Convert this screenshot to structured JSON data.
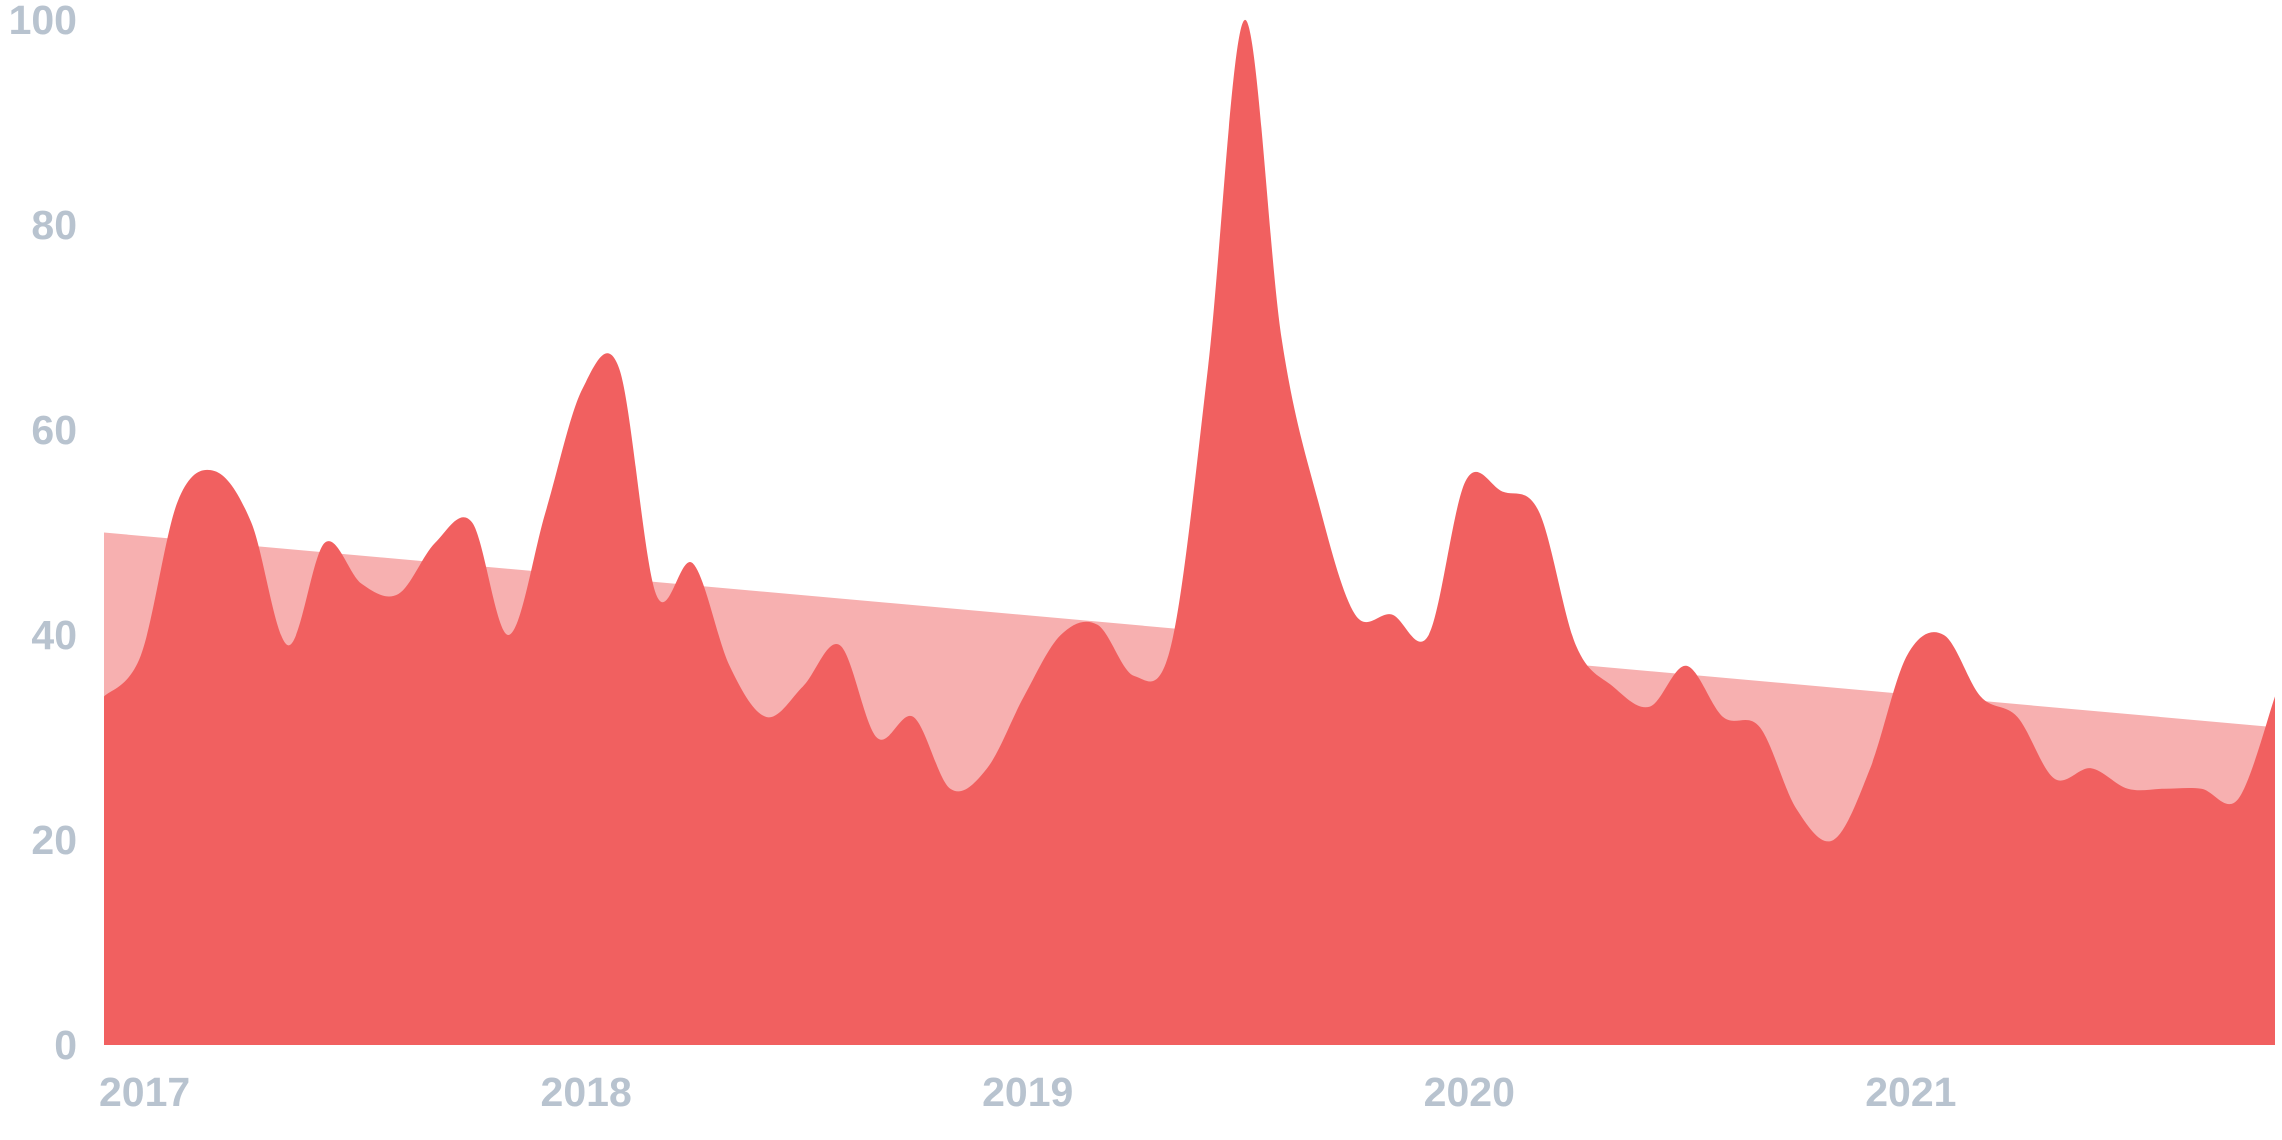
{
  "chart_data": {
    "type": "area",
    "title": "",
    "xlabel": "",
    "ylabel": "",
    "ylim": [
      0,
      100
    ],
    "xlim": [
      "2017-01",
      "2021-12"
    ],
    "grid": false,
    "legend": "none",
    "y_ticks": [
      "0",
      "20",
      "40",
      "60",
      "80",
      "100"
    ],
    "x_ticks": [
      {
        "label": "2017",
        "date": "2017-01"
      },
      {
        "label": "2018",
        "date": "2018-01"
      },
      {
        "label": "2019",
        "date": "2019-01"
      },
      {
        "label": "2020",
        "date": "2020-01"
      },
      {
        "label": "2021",
        "date": "2021-01"
      }
    ],
    "x": [
      "2017-01",
      "2017-02",
      "2017-03",
      "2017-04",
      "2017-05",
      "2017-06",
      "2017-07",
      "2017-08",
      "2017-09",
      "2017-10",
      "2017-11",
      "2017-12",
      "2018-01",
      "2018-02",
      "2018-03",
      "2018-04",
      "2018-05",
      "2018-06",
      "2018-07",
      "2018-08",
      "2018-09",
      "2018-10",
      "2018-11",
      "2018-12",
      "2019-01",
      "2019-02",
      "2019-03",
      "2019-04",
      "2019-05",
      "2019-06",
      "2019-07",
      "2019-08",
      "2019-09",
      "2019-10",
      "2019-11",
      "2019-12",
      "2020-01",
      "2020-02",
      "2020-03",
      "2020-04",
      "2020-05",
      "2020-06",
      "2020-07",
      "2020-08",
      "2020-09",
      "2020-10",
      "2020-11",
      "2020-12",
      "2021-01",
      "2021-02",
      "2021-03",
      "2021-04",
      "2021-05",
      "2021-06",
      "2021-07",
      "2021-08",
      "2021-09",
      "2021-10",
      "2021-11",
      "2021-12"
    ],
    "series": [
      {
        "values": [
          34,
          38,
          53,
          56,
          51,
          39,
          49,
          45,
          44,
          49,
          51,
          40,
          52,
          64,
          66,
          44,
          47,
          37,
          32,
          35,
          39,
          30,
          32,
          25,
          27,
          34,
          40,
          41,
          36,
          39,
          66,
          100,
          69,
          53,
          42,
          42,
          40,
          55,
          54,
          52,
          39,
          35,
          33,
          37,
          32,
          31,
          23,
          20,
          27,
          38,
          40,
          34,
          32,
          26,
          27,
          25,
          25,
          25,
          24,
          34
        ]
      }
    ],
    "trend": {
      "start": 50,
      "end": 31
    },
    "colors": {
      "series": "#f16060",
      "trend": "#f7b0b0",
      "tick_labels": "#b8c3cf"
    }
  }
}
